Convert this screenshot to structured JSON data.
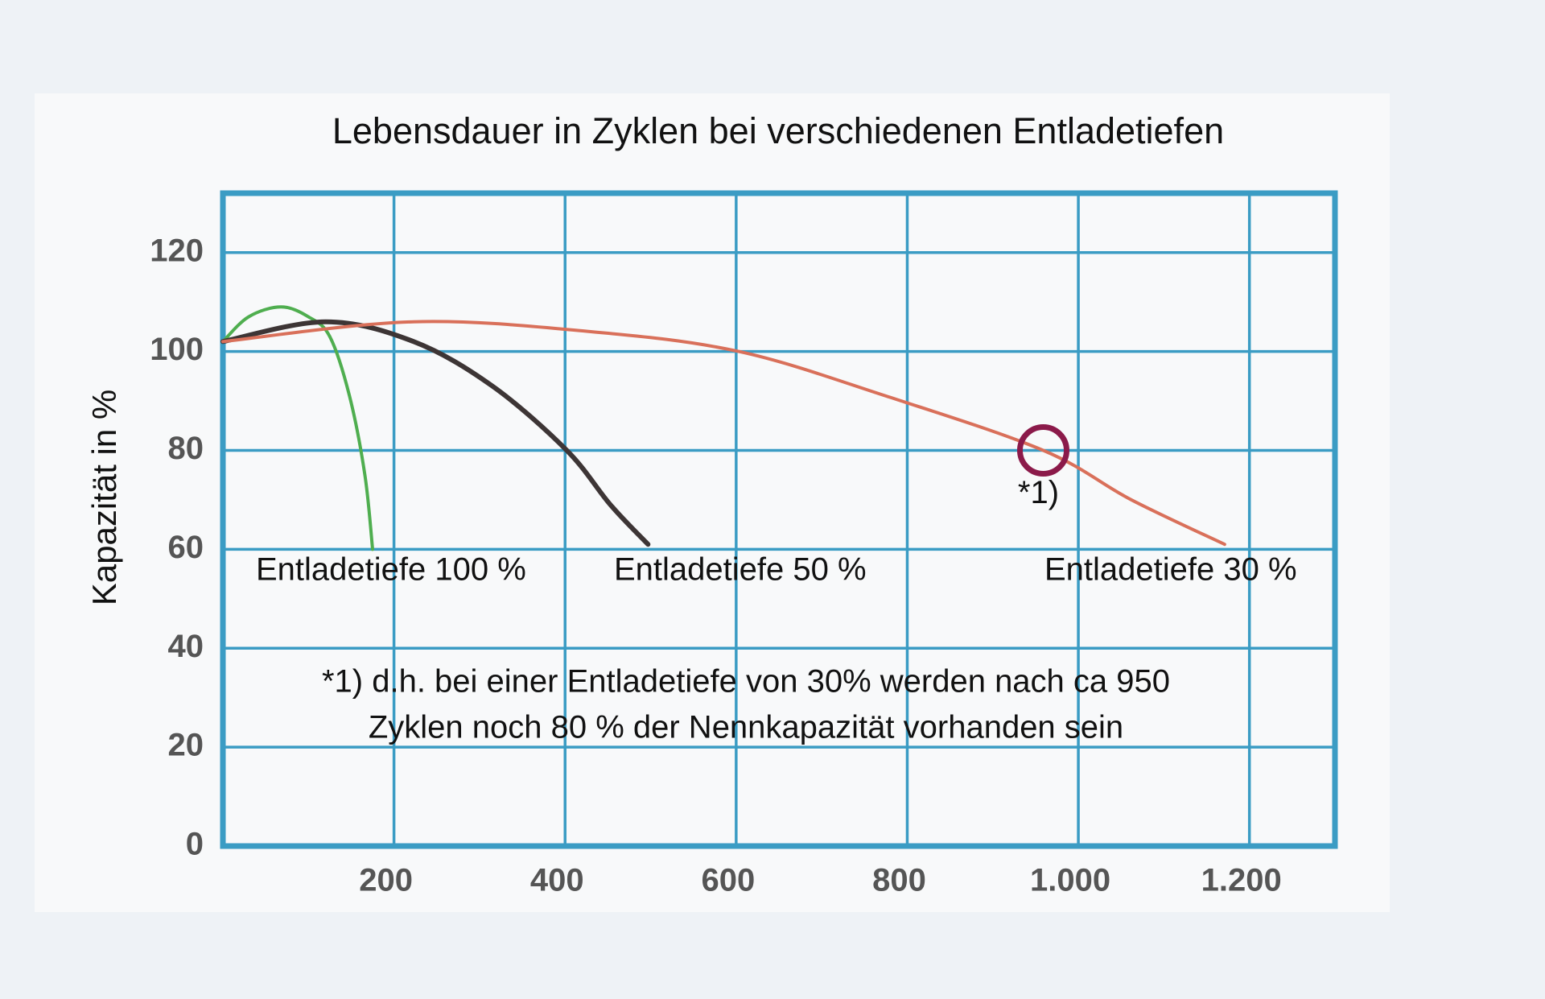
{
  "chart_data": {
    "type": "line",
    "title": "Lebensdauer in Zyklen bei verschiedenen Entladetiefen",
    "ylabel": "Kapazität in %",
    "xlim": [
      0,
      1300
    ],
    "ylim": [
      0,
      132
    ],
    "xticks": [
      200,
      400,
      600,
      800,
      {
        "value": 1000,
        "label": "1.000"
      },
      {
        "value": 1200,
        "label": "1.200"
      }
    ],
    "yticks": [
      0,
      20,
      40,
      60,
      80,
      100,
      120
    ],
    "grid": true,
    "series": [
      {
        "name": "Entladetiefe 100 %",
        "color": "#4fae4f",
        "x": [
          0,
          30,
          68,
          100,
          125,
          148,
          166,
          175
        ],
        "values": [
          102,
          107,
          109,
          107,
          103,
          91,
          75,
          60
        ]
      },
      {
        "name": "Entladetiefe 50 %",
        "color": "#3d3535",
        "x": [
          0,
          120,
          223,
          315,
          402,
          453,
          497
        ],
        "values": [
          102,
          106,
          102,
          93,
          80,
          69,
          61
        ]
      },
      {
        "name": "Entladetiefe 30 %",
        "color": "#d9705a",
        "x": [
          0,
          223,
          430,
          603,
          775,
          959,
          1062,
          1171
        ],
        "values": [
          102,
          106,
          104,
          100,
          91,
          80,
          70,
          61
        ]
      }
    ],
    "annotation": {
      "x": 959,
      "y": 80,
      "label": "*1)",
      "color": "#8b1a4a"
    },
    "note": [
      "*1) d.h. bei einer Entladetiefe von 30% werden nach ca 950",
      "Zyklen noch 80 % der Nennkapazität vorhanden sein"
    ]
  }
}
